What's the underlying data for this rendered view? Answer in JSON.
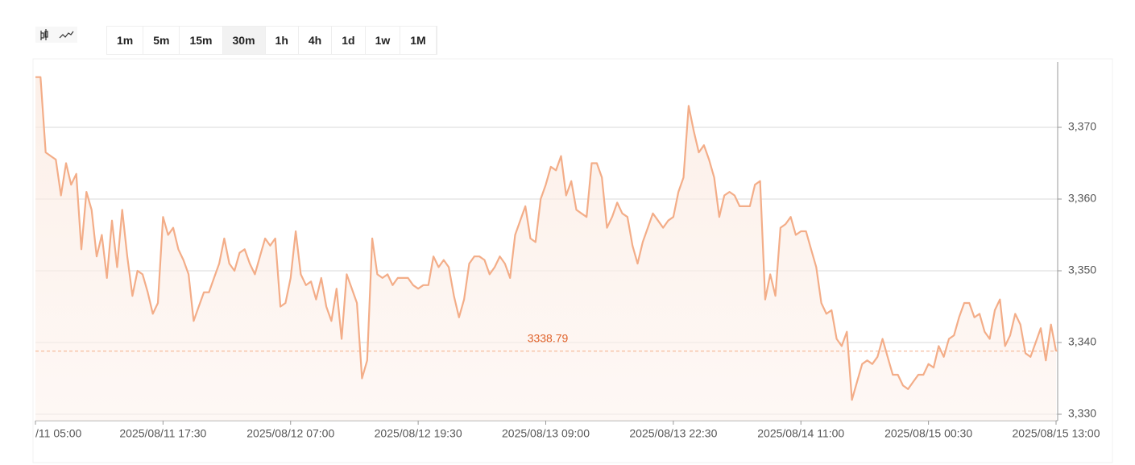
{
  "toolbar": {
    "intervals": [
      "1m",
      "5m",
      "15m",
      "30m",
      "1h",
      "4h",
      "1d",
      "1w",
      "1M"
    ],
    "selected": 3
  },
  "chart_data": {
    "type": "area",
    "color": "#f3ad88",
    "last_price_color": "#e0622a",
    "grid": true,
    "categories": [
      "/11 05:00",
      null,
      null,
      null,
      null,
      null,
      null,
      null,
      null,
      null,
      null,
      null,
      null,
      null,
      null,
      null,
      null,
      null,
      null,
      null,
      null,
      null,
      null,
      null,
      null,
      "2025/08/11 17:30",
      null,
      null,
      null,
      null,
      null,
      null,
      null,
      null,
      null,
      null,
      null,
      null,
      null,
      null,
      null,
      null,
      null,
      null,
      null,
      null,
      null,
      null,
      null,
      null,
      "2025/08/12 07:00",
      null,
      null,
      null,
      null,
      null,
      null,
      null,
      null,
      null,
      null,
      null,
      null,
      null,
      null,
      null,
      null,
      null,
      null,
      null,
      null,
      null,
      null,
      null,
      null,
      "2025/08/12 19:30",
      null,
      null,
      null,
      null,
      null,
      null,
      null,
      null,
      null,
      null,
      null,
      null,
      null,
      null,
      null,
      null,
      null,
      null,
      null,
      null,
      null,
      null,
      null,
      null,
      "2025/08/13 09:00",
      null,
      null,
      null,
      null,
      null,
      null,
      null,
      null,
      null,
      null,
      null,
      null,
      null,
      null,
      null,
      null,
      null,
      null,
      null,
      null,
      null,
      null,
      null,
      null,
      "2025/08/13 22:30",
      null,
      null,
      null,
      null,
      null,
      null,
      null,
      null,
      null,
      null,
      null,
      null,
      null,
      null,
      null,
      null,
      null,
      null,
      null,
      null,
      null,
      null,
      null,
      null,
      "2025/08/14 11:00",
      null,
      null,
      null,
      null,
      null,
      null,
      null,
      null,
      null,
      null,
      null,
      null,
      null,
      null,
      null,
      null,
      null,
      null,
      null,
      null,
      null,
      null,
      null,
      null,
      "2025/08/15 00:30",
      null,
      null,
      null,
      null,
      null,
      null,
      null,
      null,
      null,
      null,
      null,
      null,
      null,
      null,
      null,
      null,
      null,
      null,
      null,
      null,
      null,
      null,
      null,
      null,
      "2025/08/15 13:00"
    ],
    "values": [
      3377,
      3377,
      3366.5,
      3366,
      3365.5,
      3360.5,
      3365,
      3362,
      3363.5,
      3353,
      3361,
      3358.5,
      3352,
      3355,
      3349,
      3357,
      3350.5,
      3358.5,
      3352,
      3346.5,
      3350,
      3349.5,
      3347,
      3344,
      3345.5,
      3357.5,
      3355,
      3356,
      3353,
      3351.5,
      3349.5,
      3343,
      3345,
      3347,
      3347,
      3349,
      3351,
      3354.5,
      3351,
      3350,
      3352.5,
      3353,
      3351,
      3349.5,
      3352,
      3354.5,
      3353.5,
      3354.5,
      3345,
      3345.5,
      3349,
      3355.5,
      3349.5,
      3348,
      3348.5,
      3346,
      3349,
      3345,
      3343,
      3347.5,
      3340.5,
      3349.5,
      3347.5,
      3345.5,
      3335,
      3337.5,
      3354.5,
      3349.5,
      3349,
      3349.5,
      3348,
      3349,
      3349,
      3349,
      3348,
      3347.5,
      3348,
      3348,
      3352,
      3350.5,
      3351.5,
      3350.5,
      3346.5,
      3343.5,
      3346,
      3351,
      3352,
      3352,
      3351.5,
      3349.5,
      3350.5,
      3352,
      3351,
      3349,
      3355,
      3357,
      3359,
      3354.5,
      3354,
      3360,
      3362,
      3364.5,
      3364,
      3366,
      3360.5,
      3362.5,
      3358.5,
      3358,
      3357.5,
      3365,
      3365,
      3363,
      3356,
      3357.5,
      3359.5,
      3358,
      3357.5,
      3353.5,
      3351,
      3354,
      3356,
      3358,
      3357,
      3356,
      3357,
      3357.5,
      3361,
      3363,
      3373,
      3369.5,
      3366.5,
      3367.5,
      3365.5,
      3363,
      3357.5,
      3360.5,
      3361,
      3360.5,
      3359,
      3359,
      3359,
      3362,
      3362.5,
      3346,
      3349.5,
      3346.5,
      3356,
      3356.5,
      3357.5,
      3355,
      3355.5,
      3355.5,
      3353,
      3350.5,
      3345.5,
      3344,
      3344.5,
      3340.5,
      3339.5,
      3341.5,
      3332,
      3334.5,
      3337,
      3337.5,
      3337,
      3338,
      3340.5,
      3338,
      3335.5,
      3335.5,
      3334,
      3333.5,
      3334.5,
      3335.5,
      3335.5,
      3337,
      3336.5,
      3339.5,
      3338,
      3340.5,
      3341,
      3343.5,
      3345.5,
      3345.5,
      3343.5,
      3344,
      3341.5,
      3340.5,
      3344.5,
      3346,
      3339.5,
      3341,
      3344,
      3342.5,
      3338.5,
      3338,
      3340,
      3342,
      3337.5,
      3342.5,
      3338.79
    ],
    "last_price": 3338.79,
    "ylim": [
      3329.1,
      3379.1
    ],
    "yticks": [
      {
        "value": 3330,
        "label": "3,330"
      },
      {
        "value": 3340,
        "label": "3,340"
      },
      {
        "value": 3350,
        "label": "3,350"
      },
      {
        "value": 3360,
        "label": "3,360"
      },
      {
        "value": 3370,
        "label": "3,370"
      }
    ]
  }
}
